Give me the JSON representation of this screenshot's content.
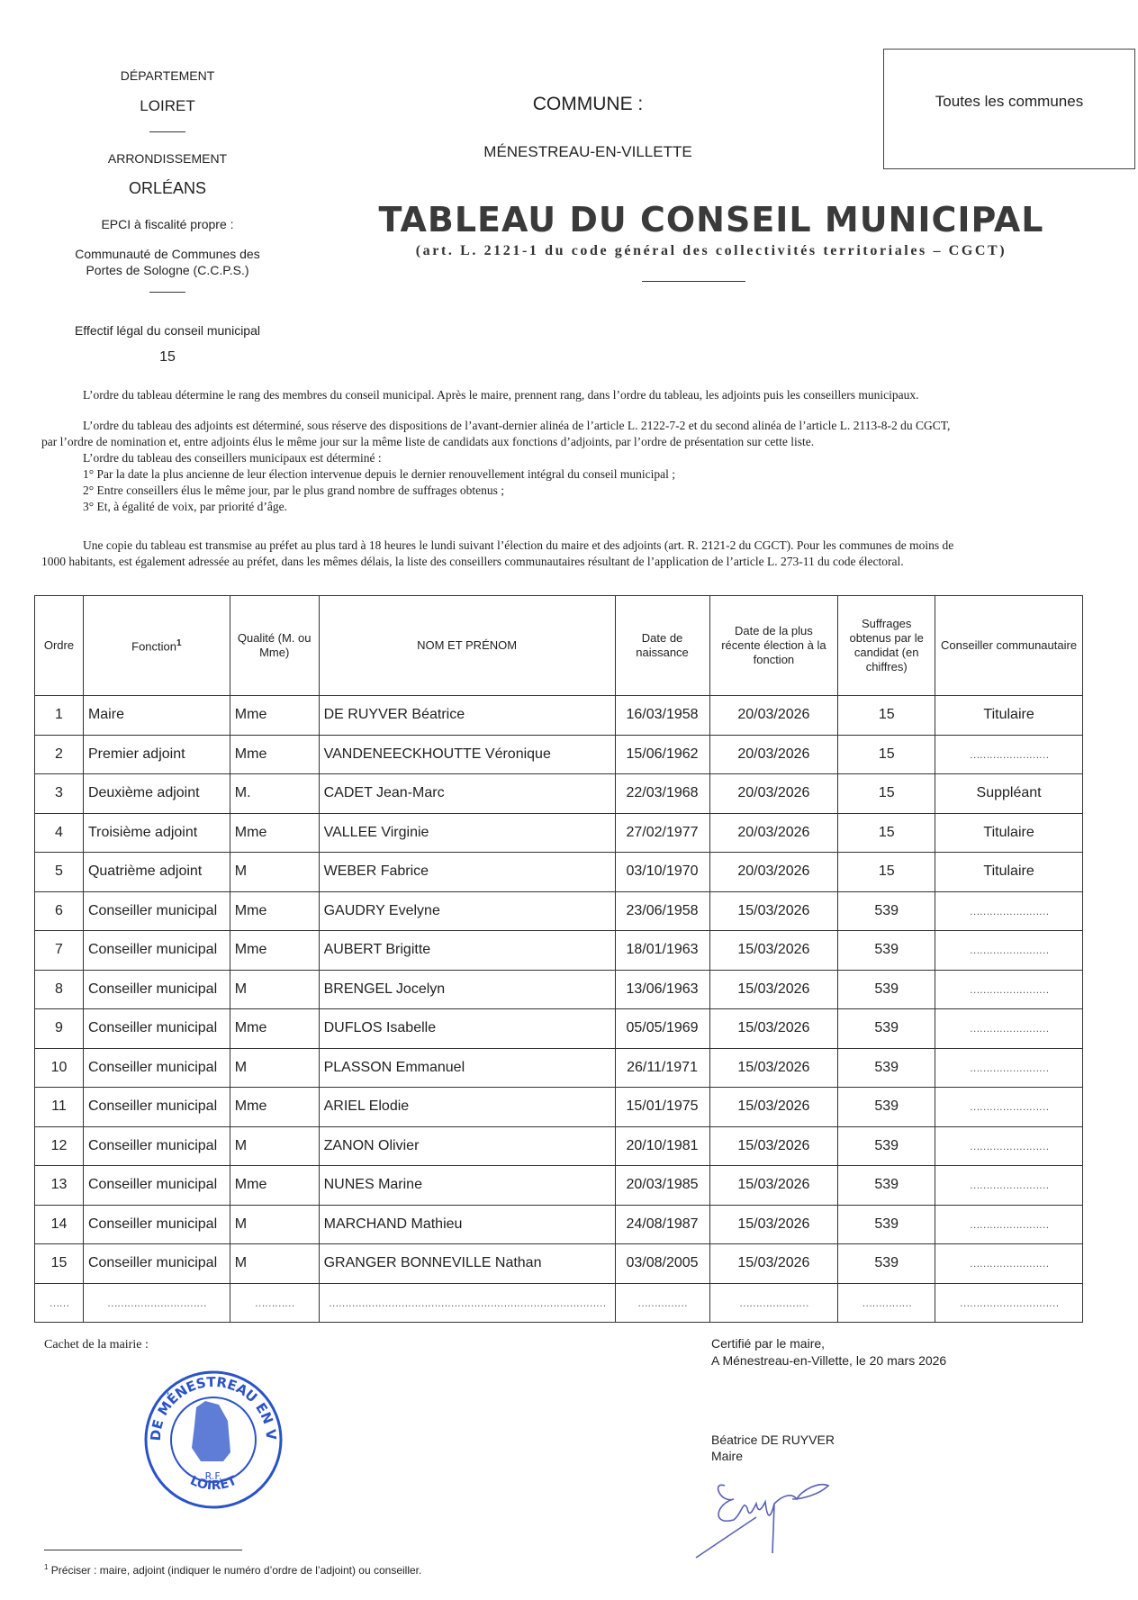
{
  "header_left": {
    "departement_label": "DÉPARTEMENT",
    "departement": "LOIRET",
    "arrondissement_label": "ARRONDISSEMENT",
    "arrondissement": "ORLÉANS",
    "epci_label": "EPCI à fiscalité propre :",
    "epci_line1": "Communauté de Communes des",
    "epci_line2": "Portes de Sologne (C.C.P.S.)",
    "effectif_label": "Effectif légal du conseil municipal",
    "effectif": "15"
  },
  "commune": {
    "label": "COMMUNE :",
    "name": "MÉNESTREAU-EN-VILLETTE"
  },
  "box_text": "Toutes les communes",
  "title": "TABLEAU DU CONSEIL MUNICIPAL",
  "subtitle": "(art. L. 2121-1 du code général des collectivités territoriales – CGCT)",
  "paragraphs": {
    "p1": "L’ordre du tableau détermine le rang des membres du conseil municipal. Après le maire, prennent rang, dans l’ordre du tableau, les adjoints puis les conseillers municipaux.",
    "p2a": "L’ordre du tableau des adjoints est déterminé, sous réserve des dispositions de l’avant-dernier alinéa de l’article L. 2122-7-2 et du second alinéa de l’article L. 2113-8-2 du CGCT,",
    "p2b": "par l’ordre de nomination et, entre adjoints élus le même jour sur la même liste de candidats aux fonctions d’adjoints, par l’ordre de présentation sur cette liste.",
    "p3": "L’ordre du tableau des conseillers municipaux est déterminé :",
    "p3_1": "1° Par la date la plus ancienne de leur élection intervenue depuis le dernier renouvellement intégral du conseil municipal ;",
    "p3_2": "2° Entre conseillers élus le même jour, par le plus grand nombre de suffrages obtenus ;",
    "p3_3": "3° Et, à égalité de voix, par priorité d’âge.",
    "p4a": "Une copie du tableau est transmise au préfet au plus tard à 18 heures le lundi suivant l’élection du maire et des adjoints (art. R. 2121-2 du CGCT). Pour les communes de moins de",
    "p4b": "1000 habitants, est également adressée au préfet, dans les mêmes délais, la liste des conseillers communautaires résultant de l’application de l’article L. 273-11 du code électoral."
  },
  "table": {
    "headers": [
      "Ordre",
      "Fonction",
      "Qualité (M. ou Mme)",
      "NOM ET PRÉNOM",
      "Date de naissance",
      "Date de la plus récente élection à la fonction",
      "Suffrages obtenus par le candidat (en chiffres)",
      "Conseiller communautaire"
    ],
    "fonction_footnote_mark": "1",
    "rows": [
      [
        "1",
        "Maire",
        "Mme",
        "DE RUYVER Béatrice",
        "16/03/1958",
        "20/03/2026",
        "15",
        "Titulaire"
      ],
      [
        "2",
        "Premier adjoint",
        "Mme",
        "VANDENEECKHOUTTE Véronique",
        "15/06/1962",
        "20/03/2026",
        "15",
        "……………………"
      ],
      [
        "3",
        "Deuxième adjoint",
        "M.",
        "CADET Jean-Marc",
        "22/03/1968",
        "20/03/2026",
        "15",
        "Suppléant"
      ],
      [
        "4",
        "Troisième adjoint",
        "Mme",
        "VALLEE Virginie",
        "27/02/1977",
        "20/03/2026",
        "15",
        "Titulaire"
      ],
      [
        "5",
        "Quatrième adjoint",
        "M",
        "WEBER Fabrice",
        "03/10/1970",
        "20/03/2026",
        "15",
        "Titulaire"
      ],
      [
        "6",
        "Conseiller municipal",
        "Mme",
        "GAUDRY Evelyne",
        "23/06/1958",
        "15/03/2026",
        "539",
        "……………………"
      ],
      [
        "7",
        "Conseiller municipal",
        "Mme",
        "AUBERT Brigitte",
        "18/01/1963",
        "15/03/2026",
        "539",
        "……………………"
      ],
      [
        "8",
        "Conseiller municipal",
        "M",
        "BRENGEL Jocelyn",
        "13/06/1963",
        "15/03/2026",
        "539",
        "……………………"
      ],
      [
        "9",
        "Conseiller municipal",
        "Mme",
        "DUFLOS Isabelle",
        "05/05/1969",
        "15/03/2026",
        "539",
        "……………………"
      ],
      [
        "10",
        "Conseiller municipal",
        "M",
        "PLASSON Emmanuel",
        "26/11/1971",
        "15/03/2026",
        "539",
        "……………………"
      ],
      [
        "11",
        "Conseiller municipal",
        "Mme",
        "ARIEL Elodie",
        "15/01/1975",
        "15/03/2026",
        "539",
        "……………………"
      ],
      [
        "12",
        "Conseiller municipal",
        "M",
        "ZANON Olivier",
        "20/10/1981",
        "15/03/2026",
        "539",
        "……………………"
      ],
      [
        "13",
        "Conseiller municipal",
        "Mme",
        "NUNES Marine",
        "20/03/1985",
        "15/03/2026",
        "539",
        "……………………"
      ],
      [
        "14",
        "Conseiller municipal",
        "M",
        "MARCHAND Mathieu",
        "24/08/1987",
        "15/03/2026",
        "539",
        "……………………"
      ],
      [
        "15",
        "Conseiller municipal",
        "M",
        "GRANGER BONNEVILLE Nathan",
        "03/08/2005",
        "15/03/2026",
        "539",
        "……………………"
      ]
    ],
    "blank_row": [
      "……",
      "…………………………",
      "…………",
      "…………………………………………………………………………",
      "……………",
      "…………………",
      "……………",
      "…………………………"
    ]
  },
  "footer": {
    "cachet_label": "Cachet de la mairie :",
    "stamp_text_top": "MAIRIE DE MÉNESTREAU EN VILLETTE",
    "stamp_center": "R.F.",
    "stamp_bottom": "LOIRET",
    "certifie": "Certifié par le maire,",
    "lieu_date": "A Ménestreau-en-Villette, le 20 mars 2026",
    "signataire": "Béatrice DE RUYVER",
    "signataire_fonction": "Maire",
    "footnote_mark": "1",
    "footnote": "Préciser : maire, adjoint (indiquer le numéro d’ordre de l’adjoint) ou conseiller."
  },
  "colors": {
    "stamp": "#2a52c9",
    "signature": "#5a5fb5"
  }
}
